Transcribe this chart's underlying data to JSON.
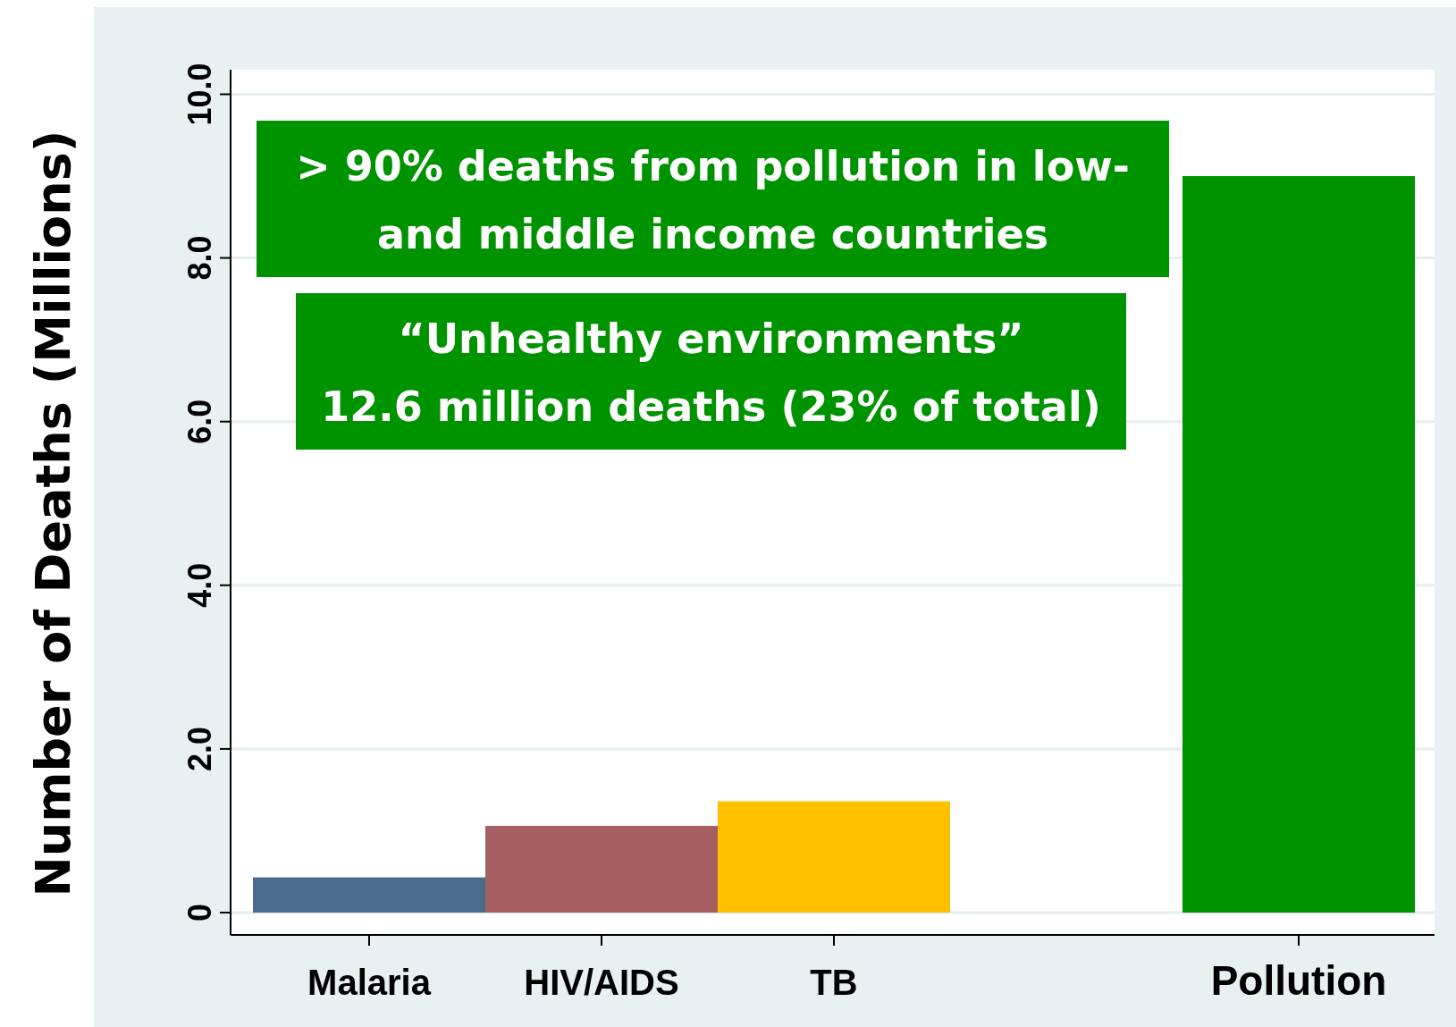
{
  "chart_data": {
    "type": "bar",
    "ylabel": "Number of Deaths (Millions)",
    "categories": [
      "Malaria",
      "HIV/AIDS",
      "TB",
      null,
      "Pollution"
    ],
    "values": [
      0.43,
      1.06,
      1.36,
      null,
      9.0
    ],
    "colors": [
      "#4a6b8c",
      "#a65e61",
      "#ffc000",
      null,
      "#009300"
    ],
    "ylim": [
      0,
      10.3
    ],
    "yticks": [
      0,
      {
        "value": 2,
        "label": "2.0"
      },
      {
        "value": 4,
        "label": "4.0"
      },
      {
        "value": 6,
        "label": "6.0"
      },
      {
        "value": 8,
        "label": "8.0"
      },
      {
        "value": 10,
        "label": "10.0"
      }
    ],
    "grid": "y",
    "annotations": [
      "> 90% deaths from pollution in low-\nand middle income countries",
      "“Unhealthy environments”\n12.6 million deaths (23% of total)"
    ]
  }
}
